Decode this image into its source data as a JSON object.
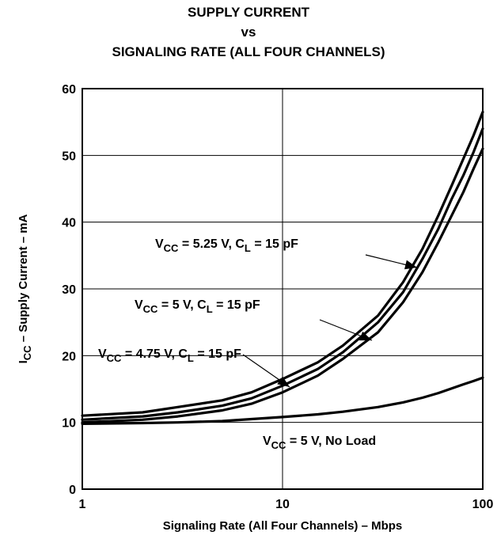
{
  "chart_data": {
    "type": "line",
    "title": [
      "SUPPLY CURRENT",
      "vs",
      "SIGNALING RATE (ALL FOUR CHANNELS)"
    ],
    "xlabel": "Signaling Rate (All Four Channels) – Mbps",
    "ylabel": {
      "main": "I",
      "sub": "CC",
      "rest": " – Supply Current – mA"
    },
    "x_scale": "log",
    "xlim": [
      1,
      100
    ],
    "ylim": [
      0,
      60
    ],
    "x_ticks": [
      "1",
      "10",
      "100"
    ],
    "y_ticks": [
      "0",
      "10",
      "20",
      "30",
      "40",
      "50",
      "60"
    ],
    "grid": true,
    "series": [
      {
        "label": {
          "v": "V",
          "vsub": "CC",
          "mid": " = 5.25 V, C",
          "csub": "L",
          "end": " = 15 pF"
        },
        "x": [
          1,
          2,
          3,
          5,
          7,
          10,
          15,
          20,
          30,
          40,
          50,
          60,
          70,
          80,
          90,
          100
        ],
        "y": [
          11,
          11.5,
          12.3,
          13.3,
          14.5,
          16.5,
          19,
          21.5,
          26,
          31,
          36,
          41,
          45.5,
          49.5,
          53,
          56.5
        ]
      },
      {
        "label": {
          "v": "V",
          "vsub": "CC",
          "mid": " = 5 V, C",
          "csub": "L",
          "end": " = 15 pF"
        },
        "x": [
          1,
          2,
          3,
          5,
          7,
          10,
          15,
          20,
          30,
          40,
          50,
          60,
          70,
          80,
          90,
          100
        ],
        "y": [
          10.4,
          10.9,
          11.5,
          12.5,
          13.6,
          15.5,
          18,
          20.5,
          25,
          29.5,
          34.5,
          39,
          43.5,
          47,
          50.5,
          54
        ]
      },
      {
        "label": {
          "v": "V",
          "vsub": "CC",
          "mid": " = 4.75 V, C",
          "csub": "L",
          "end": " = 15 pF"
        },
        "x": [
          1,
          2,
          3,
          5,
          7,
          10,
          15,
          20,
          30,
          40,
          50,
          60,
          70,
          80,
          90,
          100
        ],
        "y": [
          10,
          10.4,
          10.9,
          11.8,
          12.8,
          14.5,
          17,
          19.5,
          23.5,
          28,
          32.5,
          37,
          41,
          44.5,
          48,
          51
        ]
      },
      {
        "label": {
          "v": "V",
          "vsub": "CC",
          "mid": " = 5 V, No Load",
          "csub": "",
          "end": ""
        },
        "x": [
          1,
          2,
          3,
          5,
          7,
          10,
          15,
          20,
          30,
          40,
          50,
          60,
          70,
          80,
          90,
          100
        ],
        "y": [
          9.8,
          9.9,
          10,
          10.2,
          10.5,
          10.8,
          11.2,
          11.6,
          12.3,
          13,
          13.7,
          14.4,
          15.1,
          15.7,
          16.2,
          16.7
        ]
      }
    ]
  }
}
